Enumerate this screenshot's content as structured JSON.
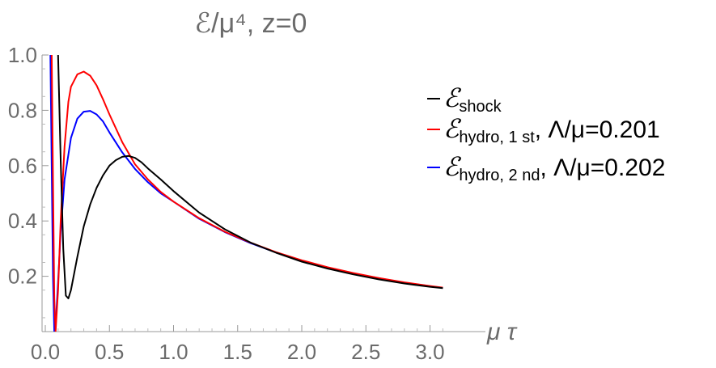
{
  "chart_data": {
    "type": "line",
    "title": "ℰ/μ⁴, z=0",
    "xlabel": "μ τ",
    "ylabel": "",
    "xlim": [
      0.0,
      3.1
    ],
    "ylim": [
      0.0,
      1.0
    ],
    "xticks": [
      "0.0",
      "0.5",
      "1.0",
      "1.5",
      "2.0",
      "2.5",
      "3.0"
    ],
    "yticks": [
      "0.2",
      "0.4",
      "0.6",
      "0.8",
      "1.0"
    ],
    "grid": false,
    "legend_position": "right",
    "series": [
      {
        "name": "ℰshock",
        "legend_main": "ℰ",
        "legend_sub": "shock",
        "legend_rest": "",
        "color": "#000000",
        "x": [
          0.1,
          0.12,
          0.14,
          0.16,
          0.18,
          0.2,
          0.25,
          0.3,
          0.35,
          0.4,
          0.45,
          0.5,
          0.55,
          0.6,
          0.65,
          0.7,
          0.75,
          0.8,
          0.9,
          1.0,
          1.2,
          1.4,
          1.6,
          1.8,
          2.0,
          2.2,
          2.4,
          2.6,
          2.8,
          3.0,
          3.1
        ],
        "y": [
          1.0,
          0.62,
          0.3,
          0.13,
          0.12,
          0.15,
          0.27,
          0.38,
          0.46,
          0.52,
          0.565,
          0.6,
          0.62,
          0.632,
          0.635,
          0.628,
          0.612,
          0.59,
          0.55,
          0.508,
          0.43,
          0.37,
          0.322,
          0.285,
          0.253,
          0.228,
          0.207,
          0.189,
          0.174,
          0.162,
          0.157
        ]
      },
      {
        "name": "ℰhydro, 1 st, Λ/μ=0.201",
        "legend_main": "ℰ",
        "legend_sub": "hydro, 1 st",
        "legend_rest": ", Λ/μ=0.201",
        "color": "#ff0000",
        "x": [
          0.05,
          0.06,
          0.07,
          0.08,
          0.1,
          0.12,
          0.15,
          0.18,
          0.2,
          0.25,
          0.3,
          0.35,
          0.4,
          0.45,
          0.5,
          0.6,
          0.7,
          0.8,
          0.9,
          1.0,
          1.2,
          1.4,
          1.6,
          1.8,
          2.0,
          2.2,
          2.4,
          2.6,
          2.8,
          3.0,
          3.1
        ],
        "y": [
          1.0,
          0.55,
          0.12,
          0.0,
          0.15,
          0.4,
          0.67,
          0.83,
          0.885,
          0.93,
          0.94,
          0.925,
          0.89,
          0.84,
          0.785,
          0.685,
          0.605,
          0.55,
          0.505,
          0.47,
          0.41,
          0.361,
          0.322,
          0.287,
          0.258,
          0.233,
          0.212,
          0.194,
          0.178,
          0.165,
          0.159
        ]
      },
      {
        "name": "ℰhydro, 2 nd, Λ/μ=0.202",
        "legend_main": "ℰ",
        "legend_sub": "hydro, 2 nd",
        "legend_rest": ", Λ/μ=0.202",
        "color": "#0000ff",
        "x": [
          0.04,
          0.05,
          0.06,
          0.07,
          0.08,
          0.1,
          0.12,
          0.15,
          0.2,
          0.25,
          0.3,
          0.35,
          0.4,
          0.45,
          0.5,
          0.6,
          0.7,
          0.8,
          0.9,
          1.0,
          1.2,
          1.4,
          1.6,
          1.8,
          2.0,
          2.2,
          2.4,
          2.6,
          2.8,
          3.0,
          3.1
        ],
        "y": [
          1.0,
          0.6,
          0.2,
          0.0,
          0.02,
          0.18,
          0.36,
          0.55,
          0.7,
          0.77,
          0.795,
          0.798,
          0.785,
          0.76,
          0.72,
          0.648,
          0.588,
          0.54,
          0.5,
          0.47,
          0.408,
          0.36,
          0.32,
          0.286,
          0.257,
          0.232,
          0.211,
          0.193,
          0.177,
          0.164,
          0.158
        ]
      }
    ]
  }
}
